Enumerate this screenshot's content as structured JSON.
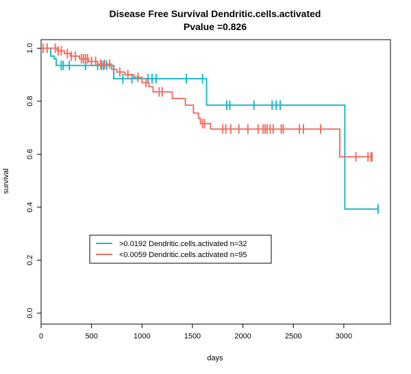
{
  "chart_data": {
    "type": "line",
    "title": "Disease Free Survival Dendritic.cells.activated",
    "subtitle": "Pvalue =0.826",
    "xlabel": "days",
    "ylabel": "survival",
    "xlim": [
      0,
      3500
    ],
    "ylim": [
      0,
      1.0
    ],
    "x_ticks": [
      0,
      500,
      1000,
      1500,
      2000,
      2500,
      3000
    ],
    "y_ticks": [
      0.0,
      0.2,
      0.4,
      0.6,
      0.8,
      1.0
    ],
    "x_tick_labels": [
      "0",
      "500",
      "1000",
      "1500",
      "2000",
      "2500",
      "3000"
    ],
    "y_tick_labels": [
      "0.0",
      "0.2",
      "0.4",
      "0.6",
      "0.8",
      "1.0"
    ],
    "grid": false,
    "legend_position": "bottom-left",
    "series": [
      {
        "name": ">0.0192 Dendritic.cells.activated n=32",
        "color": "#1ab8c8",
        "steps": [
          [
            0,
            1.0
          ],
          [
            95,
            0.97
          ],
          [
            130,
            0.96
          ],
          [
            150,
            0.935
          ],
          [
            720,
            0.885
          ],
          [
            1640,
            0.785
          ],
          [
            3010,
            0.393
          ],
          [
            3340,
            0.393
          ]
        ],
        "censored": [
          [
            200,
            0.935
          ],
          [
            220,
            0.935
          ],
          [
            280,
            0.935
          ],
          [
            440,
            0.935
          ],
          [
            560,
            0.935
          ],
          [
            600,
            0.935
          ],
          [
            620,
            0.935
          ],
          [
            650,
            0.935
          ],
          [
            810,
            0.885
          ],
          [
            900,
            0.885
          ],
          [
            1060,
            0.885
          ],
          [
            1100,
            0.885
          ],
          [
            1140,
            0.885
          ],
          [
            1440,
            0.885
          ],
          [
            1600,
            0.885
          ],
          [
            1840,
            0.785
          ],
          [
            1870,
            0.785
          ],
          [
            2110,
            0.785
          ],
          [
            2290,
            0.785
          ],
          [
            2330,
            0.785
          ],
          [
            2370,
            0.785
          ],
          [
            3340,
            0.393
          ]
        ]
      },
      {
        "name": "<0.0059 Dendritic.cells.activated n=95",
        "color": "#f07066",
        "steps": [
          [
            0,
            1.0
          ],
          [
            160,
            0.99
          ],
          [
            230,
            0.98
          ],
          [
            290,
            0.97
          ],
          [
            380,
            0.96
          ],
          [
            470,
            0.95
          ],
          [
            560,
            0.94
          ],
          [
            700,
            0.92
          ],
          [
            750,
            0.91
          ],
          [
            830,
            0.9
          ],
          [
            920,
            0.89
          ],
          [
            1000,
            0.87
          ],
          [
            1070,
            0.855
          ],
          [
            1110,
            0.835
          ],
          [
            1300,
            0.81
          ],
          [
            1430,
            0.785
          ],
          [
            1510,
            0.755
          ],
          [
            1560,
            0.735
          ],
          [
            1580,
            0.715
          ],
          [
            1680,
            0.695
          ],
          [
            2960,
            0.59
          ],
          [
            3280,
            0.59
          ]
        ],
        "censored": [
          [
            20,
            1.0
          ],
          [
            60,
            1.0
          ],
          [
            140,
            1.0
          ],
          [
            170,
            0.99
          ],
          [
            200,
            0.99
          ],
          [
            260,
            0.98
          ],
          [
            300,
            0.97
          ],
          [
            340,
            0.97
          ],
          [
            400,
            0.96
          ],
          [
            420,
            0.96
          ],
          [
            440,
            0.96
          ],
          [
            460,
            0.96
          ],
          [
            500,
            0.95
          ],
          [
            540,
            0.95
          ],
          [
            590,
            0.94
          ],
          [
            630,
            0.94
          ],
          [
            680,
            0.94
          ],
          [
            780,
            0.91
          ],
          [
            860,
            0.9
          ],
          [
            960,
            0.89
          ],
          [
            1040,
            0.87
          ],
          [
            1170,
            0.835
          ],
          [
            1200,
            0.835
          ],
          [
            1600,
            0.715
          ],
          [
            1620,
            0.715
          ],
          [
            1800,
            0.695
          ],
          [
            1830,
            0.695
          ],
          [
            1880,
            0.695
          ],
          [
            1960,
            0.695
          ],
          [
            2050,
            0.695
          ],
          [
            2150,
            0.695
          ],
          [
            2200,
            0.695
          ],
          [
            2220,
            0.695
          ],
          [
            2240,
            0.695
          ],
          [
            2270,
            0.695
          ],
          [
            2300,
            0.695
          ],
          [
            2380,
            0.695
          ],
          [
            2400,
            0.695
          ],
          [
            2560,
            0.695
          ],
          [
            2600,
            0.695
          ],
          [
            2770,
            0.695
          ],
          [
            3120,
            0.59
          ],
          [
            3240,
            0.59
          ],
          [
            3270,
            0.59
          ],
          [
            3280,
            0.59
          ]
        ]
      }
    ]
  }
}
